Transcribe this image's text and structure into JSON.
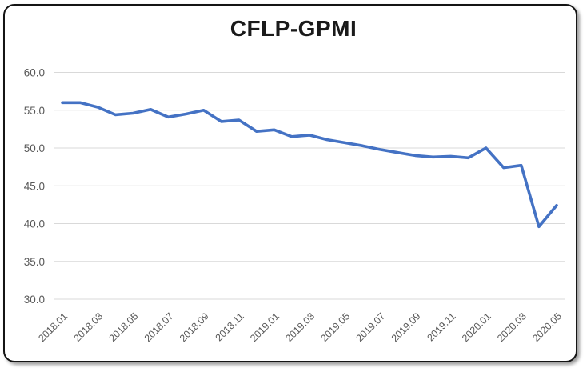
{
  "title": "CFLP-GPMI",
  "chart_data": {
    "type": "line",
    "title": "CFLP-GPMI",
    "xlabel": "",
    "ylabel": "",
    "x": [
      "2018.01",
      "2018.02",
      "2018.03",
      "2018.04",
      "2018.05",
      "2018.06",
      "2018.07",
      "2018.08",
      "2018.09",
      "2018.10",
      "2018.11",
      "2018.12",
      "2019.01",
      "2019.02",
      "2019.03",
      "2019.04",
      "2019.05",
      "2019.06",
      "2019.07",
      "2019.08",
      "2019.09",
      "2019.10",
      "2019.11",
      "2019.12",
      "2020.01",
      "2020.02",
      "2020.03",
      "2020.04",
      "2020.05"
    ],
    "values": [
      56.0,
      56.0,
      55.4,
      54.4,
      54.6,
      55.1,
      54.1,
      54.5,
      55.0,
      53.5,
      53.7,
      52.2,
      52.4,
      51.5,
      51.7,
      51.1,
      50.7,
      50.3,
      49.8,
      49.4,
      49.0,
      48.8,
      48.9,
      48.7,
      50.0,
      47.4,
      47.7,
      39.6,
      42.4
    ],
    "ylim": [
      30,
      60
    ],
    "ytick_step": 5,
    "ytick_labels": [
      "60.0",
      "55.0",
      "50.0",
      "45.0",
      "40.0",
      "35.0",
      "30.0"
    ],
    "xtick_labels_shown": [
      "2018.01",
      "2018.03",
      "2018.05",
      "2018.07",
      "2018.09",
      "2018.11",
      "2019.01",
      "2019.03",
      "2019.05",
      "2019.07",
      "2019.09",
      "2019.11",
      "2020.01",
      "2020.03",
      "2020.05"
    ],
    "grid": "horizontal",
    "legend_position": "none",
    "markers": false,
    "line_color": "#4472C4",
    "gridline_color": "#D9D9D9",
    "axis_text_color": "#595959",
    "title_color": "#1a1a1a",
    "background_color": "#FFFFFF",
    "border_color": "#141414"
  }
}
